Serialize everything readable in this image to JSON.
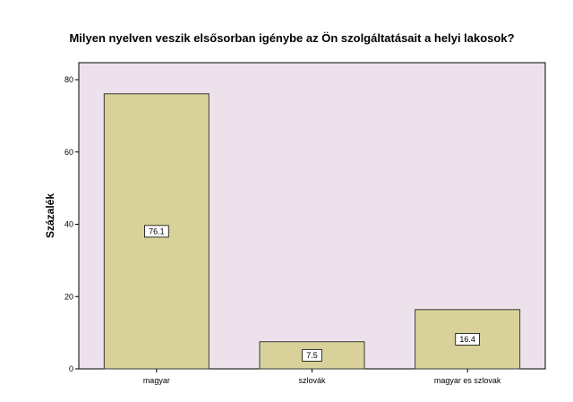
{
  "chart_data": {
    "type": "bar",
    "title": "Milyen nyelven veszik elsősorban igénybe az Ön szolgáltatásait a helyi lakosok?",
    "xlabel": "",
    "ylabel": "Százalék",
    "categories": [
      "magyar",
      "szlovák",
      "magyar es szlovak"
    ],
    "values": [
      76.1,
      7.5,
      16.4
    ],
    "data_labels": [
      "76.1",
      "7.5",
      "16.4"
    ],
    "ylim": [
      0,
      80
    ],
    "yticks": [
      0,
      20,
      40,
      60,
      80
    ],
    "grid": false,
    "legend": "none",
    "colors": {
      "plot_background": "#ede2ec",
      "bar_fill": "#d8d199",
      "bar_stroke": "#3a3a3a",
      "axis": "#000000"
    }
  }
}
